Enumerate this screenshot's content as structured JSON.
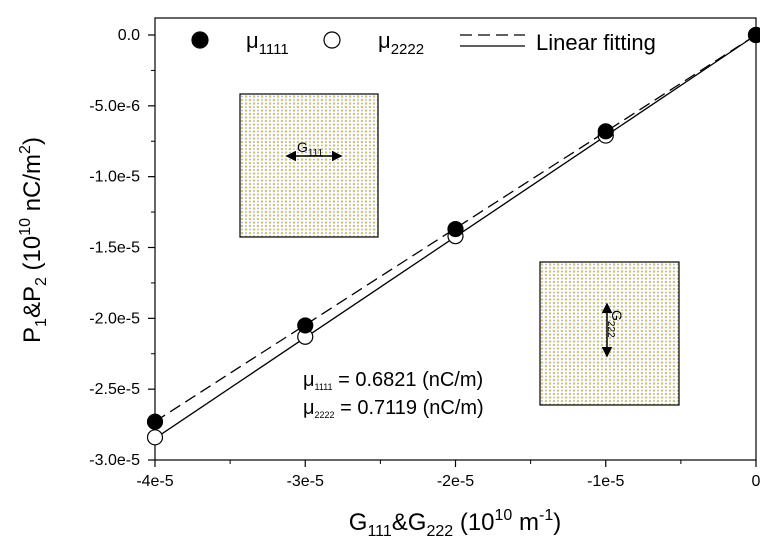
{
  "chart_data": {
    "type": "scatter",
    "xlabel": {
      "base": "G",
      "sub1": "111",
      "mid": "&G",
      "sub2": "222",
      "unit_open": " (10",
      "unit_sup": "10",
      "unit_mid": " m",
      "unit_sup2": "-1",
      "unit_close": ")"
    },
    "ylabel": {
      "base": "P",
      "sub1": "1",
      "mid": "&P",
      "sub2": "2",
      "unit_open": " (10",
      "unit_sup": "10",
      "unit_mid": " nC/m",
      "unit_sup2": "2",
      "unit_close": ")"
    },
    "xlim": [
      -4e-05,
      0
    ],
    "ylim": [
      -3e-05,
      0
    ],
    "x_ticks": [
      {
        "value": -4e-05,
        "label": "-4e-5"
      },
      {
        "value": -3e-05,
        "label": "-3e-5"
      },
      {
        "value": -2e-05,
        "label": "-2e-5"
      },
      {
        "value": -1e-05,
        "label": "-1e-5"
      },
      {
        "value": 0,
        "label": "0"
      }
    ],
    "y_ticks": [
      {
        "value": 0,
        "label": "0.0"
      },
      {
        "value": -5e-06,
        "label": "-5.0e-6"
      },
      {
        "value": -1e-05,
        "label": "-1.0e-5"
      },
      {
        "value": -1.5e-05,
        "label": "-1.5e-5"
      },
      {
        "value": -2e-05,
        "label": "-2.0e-5"
      },
      {
        "value": -2.5e-05,
        "label": "-2.5e-5"
      },
      {
        "value": -3e-05,
        "label": "-3.0e-5"
      }
    ],
    "series": [
      {
        "name": "μ1111",
        "label_base": "μ",
        "label_sub": "1111",
        "marker": "filled-circle",
        "x": [
          -4e-05,
          -3e-05,
          -2e-05,
          -1e-05,
          0
        ],
        "y": [
          -2.73e-05,
          -2.05e-05,
          -1.37e-05,
          -6.8e-06,
          0
        ]
      },
      {
        "name": "μ2222",
        "label_base": "μ",
        "label_sub": "2222",
        "marker": "open-circle",
        "x": [
          -4e-05,
          -3e-05,
          -2e-05,
          -1e-05,
          0
        ],
        "y": [
          -2.84e-05,
          -2.13e-05,
          -1.42e-05,
          -7.1e-06,
          0
        ]
      }
    ],
    "fits": [
      {
        "style": "dashed",
        "slope": 0.6821,
        "intercept": 0
      },
      {
        "style": "solid",
        "slope": 0.7119,
        "intercept": 0
      }
    ],
    "legend": {
      "fit_label": "Linear fitting",
      "placement": "top"
    },
    "annotations": [
      {
        "base": "μ",
        "sub": "1111",
        "text": " = 0.6821 (nC/m)"
      },
      {
        "base": "μ",
        "sub": "2222",
        "text": " = 0.7119 (nC/m)"
      }
    ],
    "insets": [
      {
        "label_base": "G",
        "label_sub": "111",
        "arrow": "horizontal"
      },
      {
        "label_base": "G",
        "label_sub": "222",
        "arrow": "vertical"
      }
    ],
    "colors": {
      "axis": "#000000",
      "marker_fill": "#000000",
      "inset_dot_a": "#d8c76a",
      "inset_dot_b": "#9aa7c8"
    },
    "grid": false
  }
}
